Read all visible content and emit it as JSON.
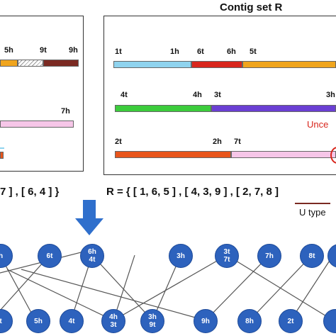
{
  "contig_set_title": "Contig set R",
  "left_panel": {
    "labels": {
      "l5h": "5h",
      "l9t": "9t",
      "l9h": "9h",
      "l7h": "7h"
    }
  },
  "right_panel": {
    "row1": {
      "a": "1t",
      "b": "1h",
      "c": "6t",
      "d": "6h",
      "e": "5t"
    },
    "row2": {
      "a": "4t",
      "b": "4h",
      "c": "3t",
      "d": "3h"
    },
    "row3": {
      "a": "2t",
      "b": "2h",
      "c": "7t"
    },
    "uncertain_label": "Unce"
  },
  "left_set_text": "7 ] , [ 6, 4 ] }",
  "r_set": {
    "prefix": "R = { [ 1, 6, 5 ] , [ 4, 3, 9 ] , [ 2, ",
    "seven": "7",
    "sep": ", ",
    "eight": "8",
    "suffix": " ]"
  },
  "u_type_label": "U type",
  "graph": {
    "top_nodes": [
      {
        "id": "n_top_edge",
        "lines": [
          "h"
        ]
      },
      {
        "id": "n_6t",
        "lines": [
          "6t"
        ]
      },
      {
        "id": "n_6h4t",
        "lines": [
          "6h",
          "4t"
        ]
      },
      {
        "id": "n_3h",
        "lines": [
          "3h"
        ]
      },
      {
        "id": "n_3t7t",
        "lines": [
          "3t",
          "7t"
        ]
      },
      {
        "id": "n_7h",
        "lines": [
          "7h"
        ]
      },
      {
        "id": "n_8t",
        "lines": [
          "8t"
        ]
      },
      {
        "id": "n_top_right",
        "lines": [
          ""
        ]
      }
    ],
    "bottom_nodes": [
      {
        "id": "b_edge",
        "lines": [
          "t"
        ]
      },
      {
        "id": "b_5h",
        "lines": [
          "5h"
        ]
      },
      {
        "id": "b_4t",
        "lines": [
          "4t"
        ]
      },
      {
        "id": "b_4h3t",
        "lines": [
          "4h",
          "3t"
        ]
      },
      {
        "id": "b_3h9t",
        "lines": [
          "3h",
          "9t"
        ]
      },
      {
        "id": "b_9h",
        "lines": [
          "9h"
        ]
      },
      {
        "id": "b_8h",
        "lines": [
          "8h"
        ]
      },
      {
        "id": "b_2t",
        "lines": [
          "2t"
        ]
      },
      {
        "id": "b_edge_right",
        "lines": [
          ""
        ]
      }
    ]
  },
  "colors": {
    "node": "#2d62bd",
    "arrow": "#2f6fcc",
    "cyan": "#8fd3ee",
    "red": "#d8261c",
    "orange": "#f0a51e",
    "green": "#3ccc3c",
    "purple": "#6a3fd3",
    "darkorange": "#e8551b",
    "pink": "#f6c6e8",
    "brown": "#7b2a22",
    "uncertain": "#d8261c"
  }
}
